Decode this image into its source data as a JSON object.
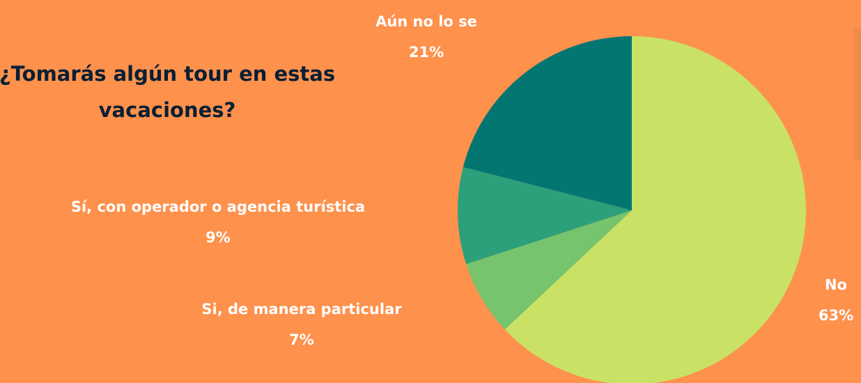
{
  "chart_data": {
    "type": "pie",
    "title": "¿Tomarás algún tour en estas vacaciones?",
    "categories": [
      "No",
      "Si, de manera particular",
      "Sí, con operador o agencia turística",
      "Aún no lo se"
    ],
    "values": [
      63,
      7,
      9,
      21
    ],
    "value_labels": [
      "63%",
      "7%",
      "9%",
      "21%"
    ],
    "colors": [
      "#c9e265",
      "#76c46e",
      "#2ca07a",
      "#037672"
    ]
  }
}
